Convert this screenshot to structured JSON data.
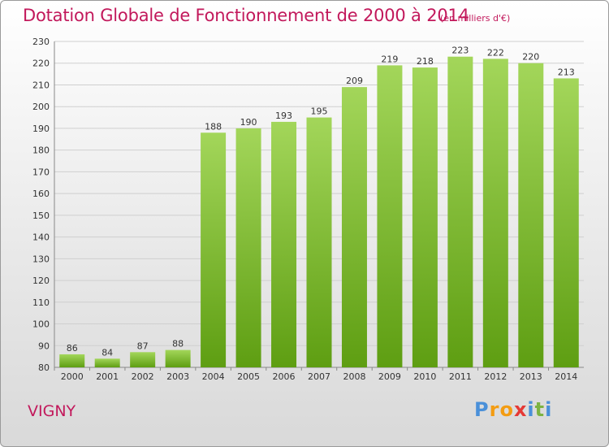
{
  "chart_data": {
    "type": "bar",
    "title": "Dotation Globale de Fonctionnement de 2000 à 2014",
    "unit": "(en milliers d'€)",
    "xlabel": "",
    "ylabel": "",
    "categories": [
      "2000",
      "2001",
      "2002",
      "2003",
      "2004",
      "2005",
      "2006",
      "2007",
      "2008",
      "2009",
      "2010",
      "2011",
      "2012",
      "2013",
      "2014"
    ],
    "values": [
      86,
      84,
      87,
      88,
      188,
      190,
      193,
      195,
      209,
      219,
      218,
      223,
      222,
      220,
      213
    ],
    "ylim": [
      80,
      230
    ],
    "yticks": [
      80,
      90,
      100,
      110,
      120,
      130,
      140,
      150,
      160,
      170,
      180,
      190,
      200,
      210,
      220,
      230
    ],
    "grid": true,
    "colors": {
      "bar_light": "#a3d65a",
      "bar_dark": "#5e9e12",
      "title": "#c2185b"
    }
  },
  "commune": "VIGNY",
  "logo": {
    "letters": [
      "P",
      "r",
      "o",
      "x",
      "i",
      "t",
      "i"
    ],
    "colors": [
      "#4a90d9",
      "#f39c12",
      "#f39c12",
      "#e53935",
      "#4a90d9",
      "#7cb342",
      "#4a90d9"
    ]
  }
}
